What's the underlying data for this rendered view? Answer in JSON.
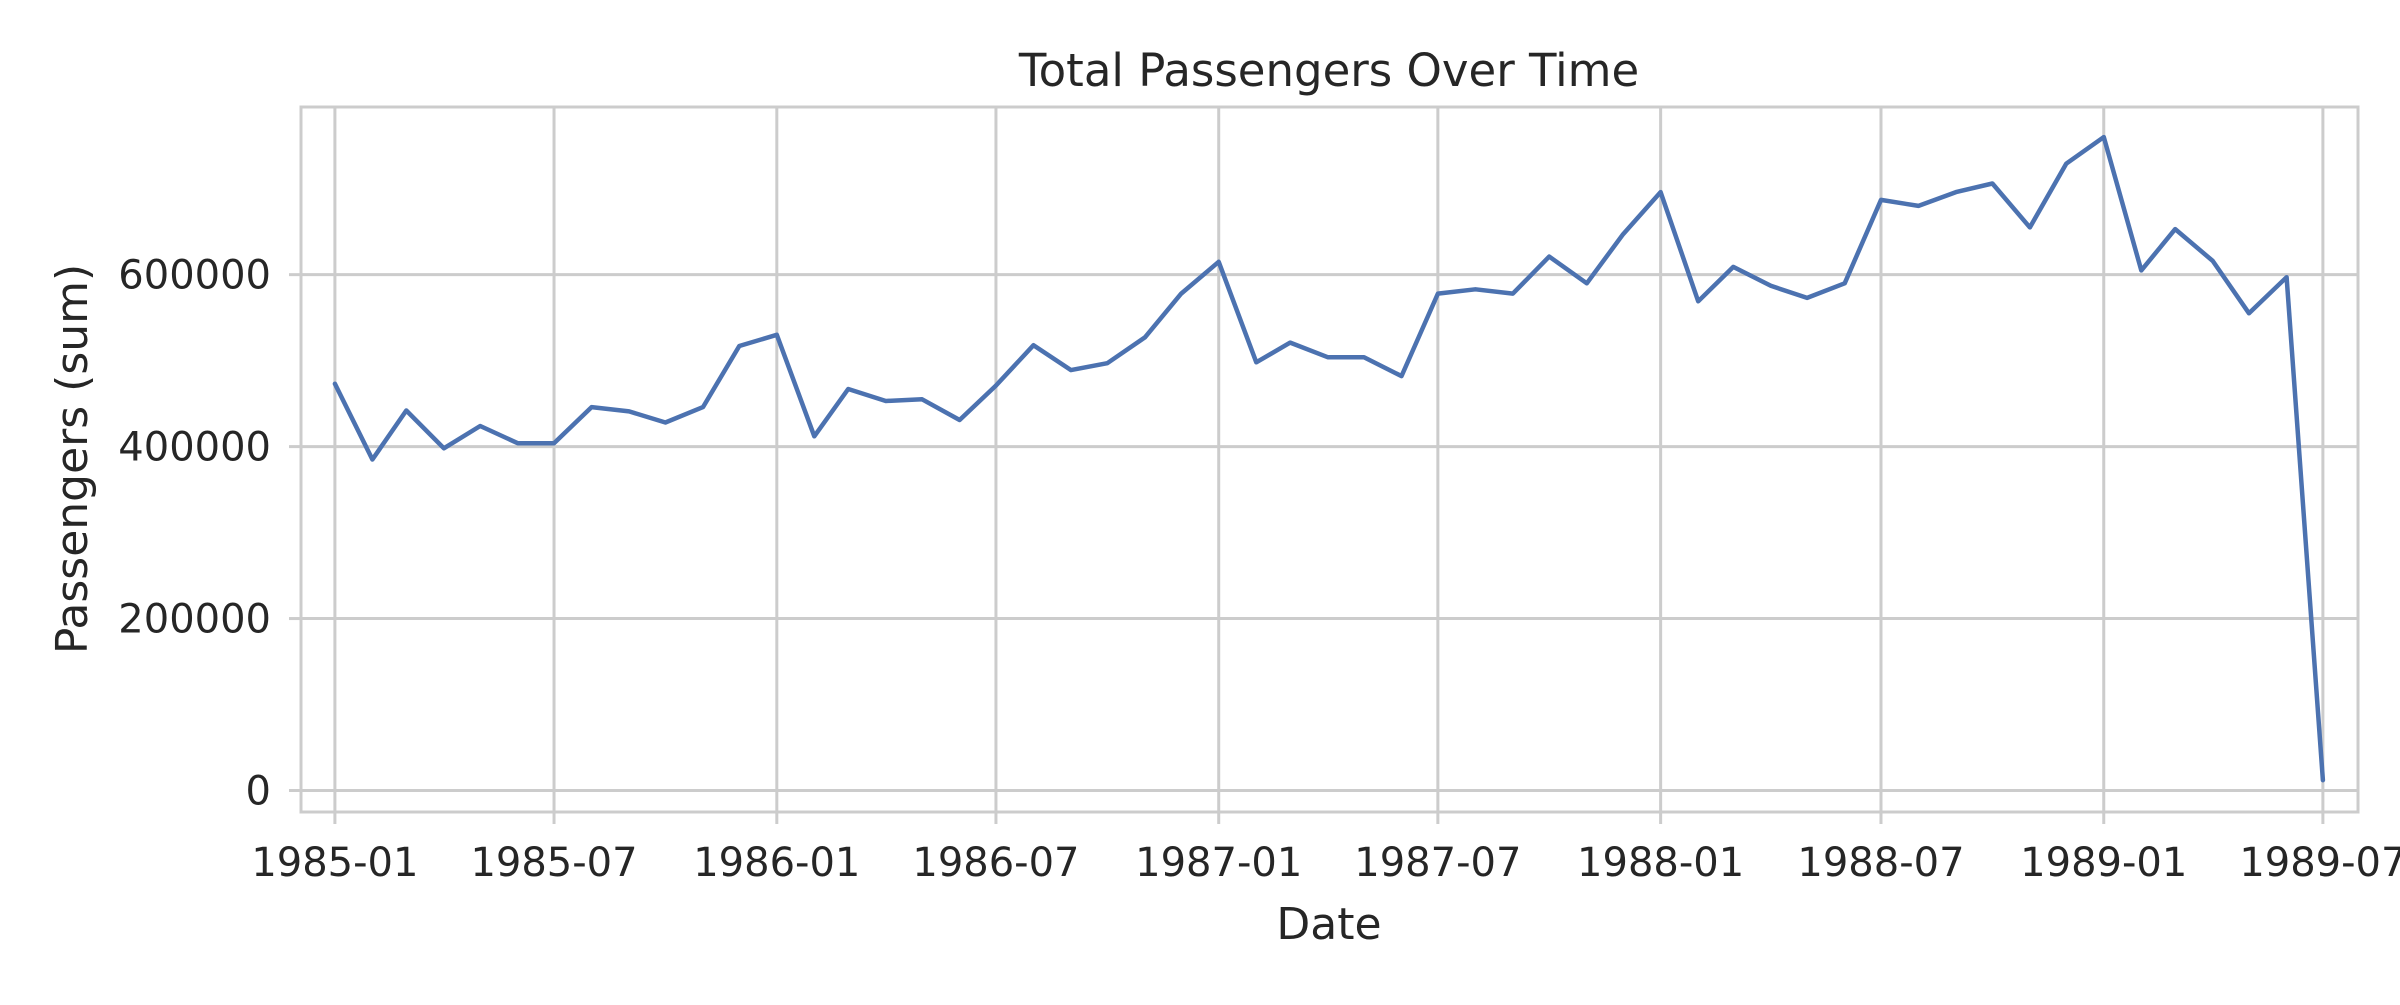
{
  "chart_data": {
    "type": "line",
    "title": "Total Passengers Over Time",
    "xlabel": "Date",
    "ylabel": "Passengers (sum)",
    "x_tick_labels": [
      "1985-01",
      "1985-07",
      "1986-01",
      "1986-07",
      "1987-01",
      "1987-07",
      "1988-01",
      "1988-07",
      "1989-01",
      "1989-07"
    ],
    "y_ticks": [
      0,
      200000,
      400000,
      600000
    ],
    "y_tick_labels": [
      "0",
      "200000",
      "400000",
      "600000"
    ],
    "xlim": [
      "1984-12-04",
      "1989-07-30"
    ],
    "ylim": [
      -25000,
      795000
    ],
    "grid": true,
    "legend": "none",
    "series": [
      {
        "color": "#4c72b0",
        "x": [
          "1985-01",
          "1985-02",
          "1985-03",
          "1985-04",
          "1985-05",
          "1985-06",
          "1985-07",
          "1985-08",
          "1985-09",
          "1985-10",
          "1985-11",
          "1985-12",
          "1986-01",
          "1986-02",
          "1986-03",
          "1986-04",
          "1986-05",
          "1986-06",
          "1986-07",
          "1986-08",
          "1986-09",
          "1986-10",
          "1986-11",
          "1986-12",
          "1987-01",
          "1987-02",
          "1987-03",
          "1987-04",
          "1987-05",
          "1987-06",
          "1987-07",
          "1987-08",
          "1987-09",
          "1987-10",
          "1987-11",
          "1987-12",
          "1988-01",
          "1988-02",
          "1988-03",
          "1988-04",
          "1988-05",
          "1988-06",
          "1988-07",
          "1988-08",
          "1988-09",
          "1988-10",
          "1988-11",
          "1988-12",
          "1989-01",
          "1989-02",
          "1989-03",
          "1989-04",
          "1989-05",
          "1989-06",
          "1989-07"
        ],
        "y": [
          473000,
          385000,
          442000,
          398000,
          424000,
          404000,
          404000,
          446000,
          441000,
          428000,
          446000,
          517000,
          530000,
          412000,
          467000,
          453000,
          455000,
          431000,
          471000,
          518000,
          489000,
          497000,
          527000,
          578000,
          615000,
          498000,
          521000,
          504000,
          504000,
          482000,
          578000,
          583000,
          578000,
          621000,
          590000,
          647000,
          696000,
          569000,
          609000,
          587000,
          573000,
          590000,
          687000,
          680000,
          696000,
          706000,
          655000,
          729000,
          760000,
          605000,
          653000,
          616000,
          555000,
          597000,
          12000
        ]
      }
    ]
  }
}
